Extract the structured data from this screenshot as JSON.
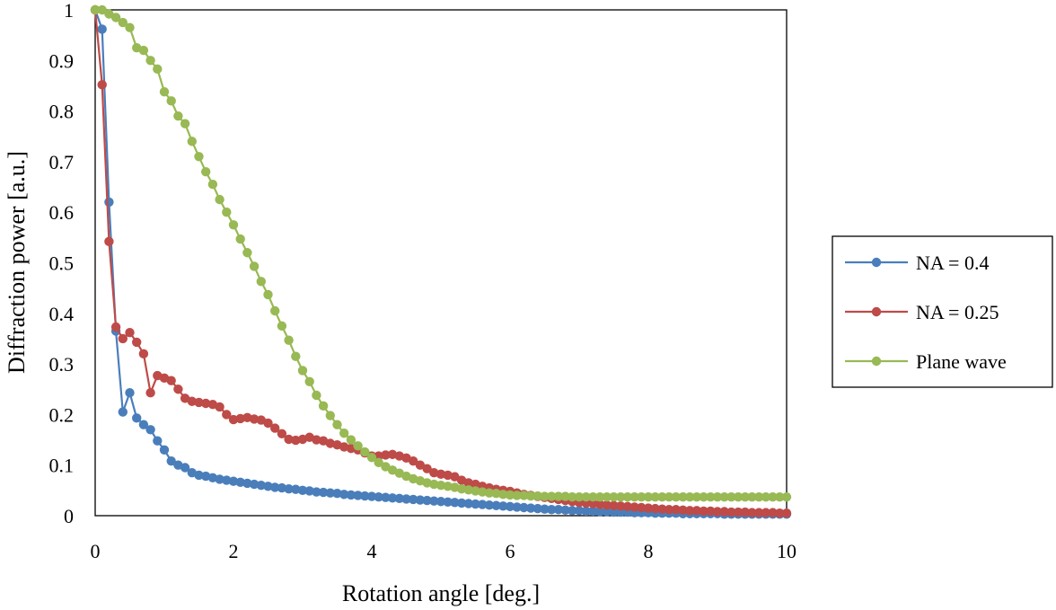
{
  "chart_data": {
    "type": "line",
    "title": "",
    "xlabel": "Rotation angle [deg.]",
    "ylabel": "Diffraction power [a.u.]",
    "xlim": [
      0,
      10
    ],
    "ylim": [
      0,
      1
    ],
    "x_ticks": [
      "0",
      "2",
      "4",
      "6",
      "8",
      "10"
    ],
    "y_ticks": [
      "0",
      "0.1",
      "0.2",
      "0.3",
      "0.4",
      "0.5",
      "0.6",
      "0.7",
      "0.8",
      "0.9",
      "1"
    ],
    "grid": false,
    "legend_position": "right",
    "x": [
      0,
      0.1,
      0.2,
      0.3,
      0.4,
      0.5,
      0.6,
      0.7,
      0.8,
      0.9,
      1,
      1.1,
      1.2,
      1.3,
      1.4,
      1.5,
      1.6,
      1.7,
      1.8,
      1.9,
      2,
      2.1,
      2.2,
      2.3,
      2.4,
      2.5,
      2.6,
      2.7,
      2.8,
      2.9,
      3,
      3.1,
      3.2,
      3.3,
      3.4,
      3.5,
      3.6,
      3.7,
      3.8,
      3.9,
      4,
      4.1,
      4.2,
      4.3,
      4.4,
      4.5,
      4.6,
      4.7,
      4.8,
      4.9,
      5,
      5.1,
      5.2,
      5.3,
      5.4,
      5.5,
      5.6,
      5.7,
      5.8,
      5.9,
      6,
      6.1,
      6.2,
      6.3,
      6.4,
      6.5,
      6.6,
      6.7,
      6.8,
      6.9,
      7,
      7.1,
      7.2,
      7.3,
      7.4,
      7.5,
      7.6,
      7.7,
      7.8,
      7.9,
      8,
      8.1,
      8.2,
      8.3,
      8.4,
      8.5,
      8.6,
      8.7,
      8.8,
      8.9,
      9,
      9.1,
      9.2,
      9.3,
      9.4,
      9.5,
      9.6,
      9.7,
      9.8,
      9.9,
      10
    ],
    "series": [
      {
        "name": "NA = 0.4",
        "color": "#4a7ebb",
        "values": [
          1,
          0.962,
          0.62,
          0.365,
          0.205,
          0.243,
          0.193,
          0.18,
          0.17,
          0.148,
          0.13,
          0.108,
          0.1,
          0.095,
          0.085,
          0.08,
          0.078,
          0.075,
          0.072,
          0.07,
          0.068,
          0.066,
          0.064,
          0.062,
          0.06,
          0.058,
          0.056,
          0.055,
          0.053,
          0.052,
          0.05,
          0.049,
          0.047,
          0.046,
          0.045,
          0.044,
          0.042,
          0.041,
          0.04,
          0.039,
          0.038,
          0.037,
          0.036,
          0.035,
          0.034,
          0.033,
          0.032,
          0.031,
          0.03,
          0.029,
          0.028,
          0.027,
          0.026,
          0.025,
          0.024,
          0.023,
          0.022,
          0.021,
          0.02,
          0.019,
          0.018,
          0.017,
          0.016,
          0.015,
          0.014,
          0.013,
          0.012,
          0.012,
          0.011,
          0.01,
          0.01,
          0.009,
          0.009,
          0.008,
          0.008,
          0.007,
          0.007,
          0.007,
          0.006,
          0.006,
          0.006,
          0.005,
          0.005,
          0.005,
          0.005,
          0.004,
          0.004,
          0.004,
          0.004,
          0.004,
          0.004,
          0.003,
          0.003,
          0.003,
          0.003,
          0.003,
          0.003,
          0.003,
          0.003,
          0.003,
          0.003
        ]
      },
      {
        "name": "NA = 0.25",
        "color": "#be4b48",
        "values": [
          1,
          0.852,
          0.542,
          0.373,
          0.35,
          0.362,
          0.343,
          0.32,
          0.243,
          0.277,
          0.272,
          0.267,
          0.25,
          0.232,
          0.226,
          0.224,
          0.222,
          0.22,
          0.215,
          0.2,
          0.19,
          0.192,
          0.194,
          0.191,
          0.189,
          0.183,
          0.173,
          0.162,
          0.151,
          0.149,
          0.151,
          0.155,
          0.15,
          0.148,
          0.143,
          0.14,
          0.136,
          0.133,
          0.13,
          0.124,
          0.118,
          0.118,
          0.12,
          0.121,
          0.118,
          0.114,
          0.108,
          0.1,
          0.093,
          0.085,
          0.082,
          0.08,
          0.077,
          0.07,
          0.065,
          0.062,
          0.058,
          0.055,
          0.052,
          0.05,
          0.048,
          0.045,
          0.042,
          0.04,
          0.038,
          0.036,
          0.034,
          0.032,
          0.03,
          0.028,
          0.026,
          0.025,
          0.024,
          0.022,
          0.021,
          0.02,
          0.019,
          0.018,
          0.017,
          0.016,
          0.015,
          0.014,
          0.013,
          0.012,
          0.012,
          0.011,
          0.01,
          0.01,
          0.009,
          0.009,
          0.008,
          0.008,
          0.007,
          0.007,
          0.007,
          0.006,
          0.006,
          0.006,
          0.006,
          0.005,
          0.005
        ]
      },
      {
        "name": "Plane wave",
        "color": "#98b954",
        "values": [
          1,
          1,
          0.992,
          0.985,
          0.975,
          0.965,
          0.925,
          0.92,
          0.9,
          0.883,
          0.838,
          0.82,
          0.79,
          0.775,
          0.74,
          0.71,
          0.68,
          0.655,
          0.625,
          0.6,
          0.575,
          0.547,
          0.52,
          0.493,
          0.463,
          0.437,
          0.405,
          0.375,
          0.347,
          0.315,
          0.287,
          0.265,
          0.238,
          0.217,
          0.198,
          0.18,
          0.163,
          0.15,
          0.138,
          0.126,
          0.115,
          0.105,
          0.097,
          0.09,
          0.084,
          0.078,
          0.073,
          0.069,
          0.065,
          0.062,
          0.06,
          0.058,
          0.056,
          0.053,
          0.051,
          0.049,
          0.047,
          0.045,
          0.044,
          0.042,
          0.041,
          0.04,
          0.04,
          0.039,
          0.039,
          0.038,
          0.038,
          0.038,
          0.038,
          0.037,
          0.037,
          0.037,
          0.037,
          0.037,
          0.037,
          0.037,
          0.037,
          0.037,
          0.037,
          0.037,
          0.037,
          0.037,
          0.037,
          0.037,
          0.037,
          0.037,
          0.037,
          0.037,
          0.037,
          0.037,
          0.037,
          0.037,
          0.037,
          0.037,
          0.037,
          0.037,
          0.037,
          0.037,
          0.037,
          0.037,
          0.037
        ]
      }
    ]
  }
}
